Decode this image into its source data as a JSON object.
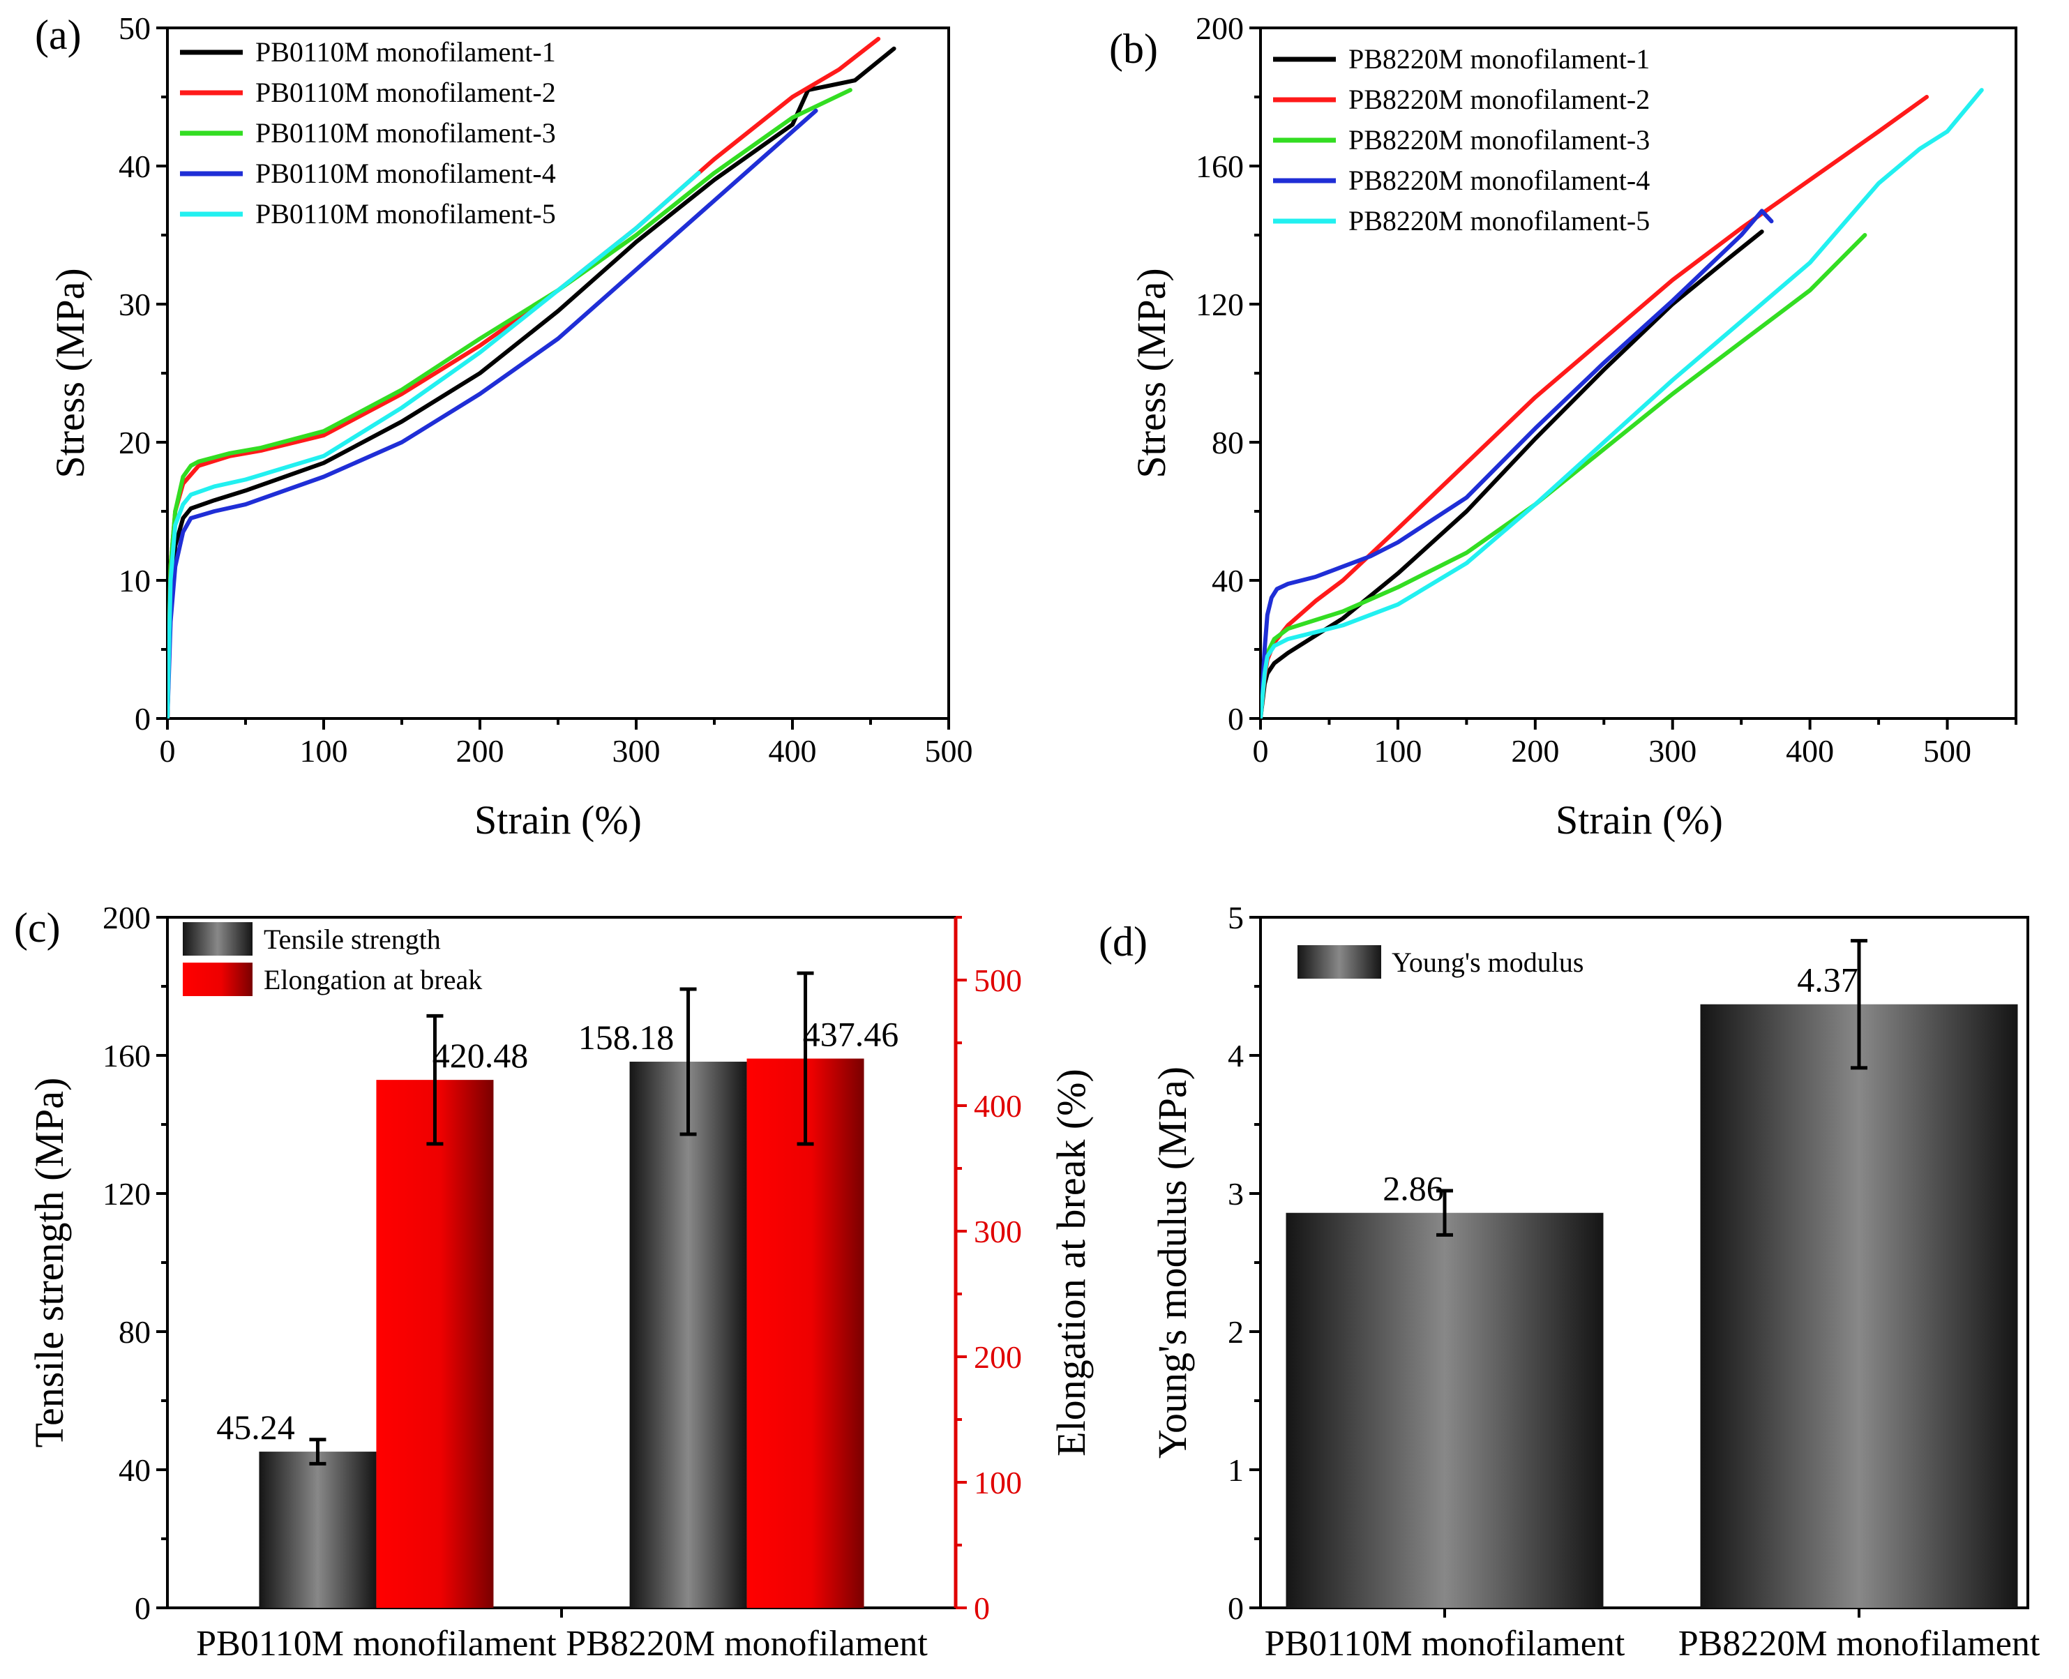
{
  "colors": {
    "black": "#000000",
    "red": "#ff1a1a",
    "green": "#33dd22",
    "blue": "#1f2ed6",
    "cyan": "#22f0f0",
    "axis_red": "#e00000",
    "bar_red": "#ee0000"
  },
  "chart_data": [
    {
      "id": "a",
      "type": "line",
      "panel_label": "(a)",
      "xlabel": "Strain (%)",
      "ylabel": "Stress (MPa)",
      "xlim": [
        0,
        500
      ],
      "ylim": [
        0,
        50
      ],
      "xticks": [
        0,
        100,
        200,
        300,
        400,
        500
      ],
      "yticks": [
        0,
        10,
        20,
        30,
        40,
        50
      ],
      "legend_position": "top-left",
      "series": [
        {
          "name": "PB0110M monofilament-1",
          "color": "black",
          "x": [
            0,
            2,
            5,
            10,
            15,
            30,
            50,
            100,
            150,
            200,
            250,
            300,
            350,
            400,
            410,
            440,
            465
          ],
          "y": [
            0,
            9,
            12.5,
            14.5,
            15.2,
            15.8,
            16.5,
            18.5,
            21.5,
            25,
            29.5,
            34.5,
            39,
            43,
            45.5,
            46.2,
            48.5
          ]
        },
        {
          "name": "PB0110M monofilament-2",
          "color": "red",
          "x": [
            0,
            2,
            5,
            10,
            20,
            40,
            60,
            100,
            150,
            200,
            250,
            300,
            350,
            400,
            430,
            455
          ],
          "y": [
            0,
            11,
            15,
            17,
            18.3,
            19,
            19.4,
            20.5,
            23.5,
            27,
            31,
            35.5,
            40.5,
            45,
            47,
            49.2
          ]
        },
        {
          "name": "PB0110M monofilament-3",
          "color": "green",
          "x": [
            0,
            2,
            5,
            10,
            15,
            20,
            40,
            60,
            100,
            150,
            200,
            250,
            300,
            350,
            400,
            437
          ],
          "y": [
            0,
            11,
            15,
            17.5,
            18.3,
            18.6,
            19.2,
            19.6,
            20.8,
            23.8,
            27.5,
            31,
            35,
            39.5,
            43.5,
            45.5
          ]
        },
        {
          "name": "PB0110M monofilament-4",
          "color": "blue",
          "x": [
            0,
            2,
            5,
            10,
            15,
            30,
            50,
            100,
            150,
            200,
            250,
            300,
            350,
            400,
            415
          ],
          "y": [
            0,
            7,
            11,
            13.5,
            14.5,
            15,
            15.5,
            17.5,
            20,
            23.5,
            27.5,
            32.5,
            37.5,
            42.5,
            44
          ]
        },
        {
          "name": "PB0110M monofilament-5",
          "color": "cyan",
          "x": [
            0,
            2,
            5,
            10,
            15,
            30,
            50,
            100,
            150,
            200,
            250,
            300,
            340
          ],
          "y": [
            0,
            10,
            14,
            15.5,
            16.2,
            16.8,
            17.3,
            19,
            22.5,
            26.5,
            31,
            35.5,
            39.5
          ]
        }
      ]
    },
    {
      "id": "b",
      "type": "line",
      "panel_label": "(b)",
      "xlabel": "Strain (%)",
      "ylabel": "Stress (MPa)",
      "xlim": [
        0,
        550
      ],
      "ylim": [
        0,
        200
      ],
      "xticks": [
        0,
        100,
        200,
        300,
        400,
        500
      ],
      "yticks": [
        0,
        40,
        80,
        120,
        160,
        200
      ],
      "legend_position": "top-left",
      "series": [
        {
          "name": "PB8220M monofilament-1",
          "color": "black",
          "x": [
            0,
            3,
            5,
            10,
            20,
            40,
            60,
            100,
            150,
            200,
            250,
            300,
            340,
            365
          ],
          "y": [
            0,
            10,
            13,
            16,
            19,
            24,
            29,
            42,
            60,
            81,
            101,
            120,
            133,
            141
          ]
        },
        {
          "name": "PB8220M monofilament-2",
          "color": "red",
          "x": [
            0,
            3,
            5,
            10,
            20,
            40,
            60,
            100,
            150,
            200,
            250,
            300,
            350,
            400,
            450,
            485
          ],
          "y": [
            0,
            12,
            17,
            22,
            27,
            34,
            40,
            55,
            74,
            93,
            110,
            127,
            142,
            156,
            170,
            180
          ]
        },
        {
          "name": "PB8220M monofilament-3",
          "color": "green",
          "x": [
            0,
            3,
            5,
            10,
            20,
            40,
            60,
            100,
            150,
            200,
            250,
            300,
            350,
            400,
            440
          ],
          "y": [
            0,
            13,
            19,
            23,
            26,
            28.5,
            31,
            38,
            48,
            62,
            78,
            94,
            109,
            124,
            140
          ]
        },
        {
          "name": "PB8220M monofilament-4",
          "color": "blue",
          "x": [
            0,
            3,
            5,
            8,
            12,
            20,
            40,
            60,
            80,
            100,
            150,
            200,
            250,
            300,
            350,
            365,
            372
          ],
          "y": [
            0,
            20,
            30,
            35,
            37.5,
            39,
            41,
            44,
            47,
            51,
            64,
            84,
            103,
            121,
            140,
            147,
            144
          ]
        },
        {
          "name": "PB8220M monofilament-5",
          "color": "cyan",
          "x": [
            0,
            3,
            5,
            10,
            20,
            40,
            60,
            100,
            150,
            200,
            250,
            300,
            350,
            400,
            450,
            480,
            500,
            525
          ],
          "y": [
            0,
            13,
            18,
            21,
            23,
            25,
            27,
            33,
            45,
            62,
            80,
            98,
            115,
            132,
            155,
            165,
            170,
            182
          ]
        }
      ]
    },
    {
      "id": "c",
      "type": "bar",
      "panel_label": "(c)",
      "ylabel": "Tensile strength (MPa)",
      "y2label": "Elongation at break (%)",
      "ylim": [
        0,
        200
      ],
      "yticks": [
        0,
        40,
        80,
        120,
        160,
        200
      ],
      "y2lim": [
        0,
        550
      ],
      "y2ticks": [
        0,
        100,
        200,
        300,
        400,
        500
      ],
      "categories": [
        "PB0110M monofilament",
        "PB8220M monofilament"
      ],
      "legend_position": "top-left",
      "series": [
        {
          "name": "Tensile strength",
          "axis": "left",
          "values": [
            45.24,
            158.18
          ],
          "errors": [
            3.5,
            21
          ],
          "labels": [
            "45.24",
            "158.18"
          ]
        },
        {
          "name": "Elongation at break",
          "axis": "right",
          "values": [
            420.48,
            437.46
          ],
          "errors": [
            51,
            68
          ],
          "labels": [
            "420.48",
            "437.46"
          ]
        }
      ]
    },
    {
      "id": "d",
      "type": "bar",
      "panel_label": "(d)",
      "ylabel": "Young's modulus (MPa)",
      "ylim": [
        0,
        5
      ],
      "yticks": [
        0,
        1,
        2,
        3,
        4,
        5
      ],
      "categories": [
        "PB0110M monofilament",
        "PB8220M monofilament"
      ],
      "legend_position": "top-left",
      "series": [
        {
          "name": "Young's modulus",
          "values": [
            2.86,
            4.37
          ],
          "errors": [
            0.16,
            0.46
          ],
          "labels": [
            "2.86",
            "4.37"
          ]
        }
      ]
    }
  ]
}
